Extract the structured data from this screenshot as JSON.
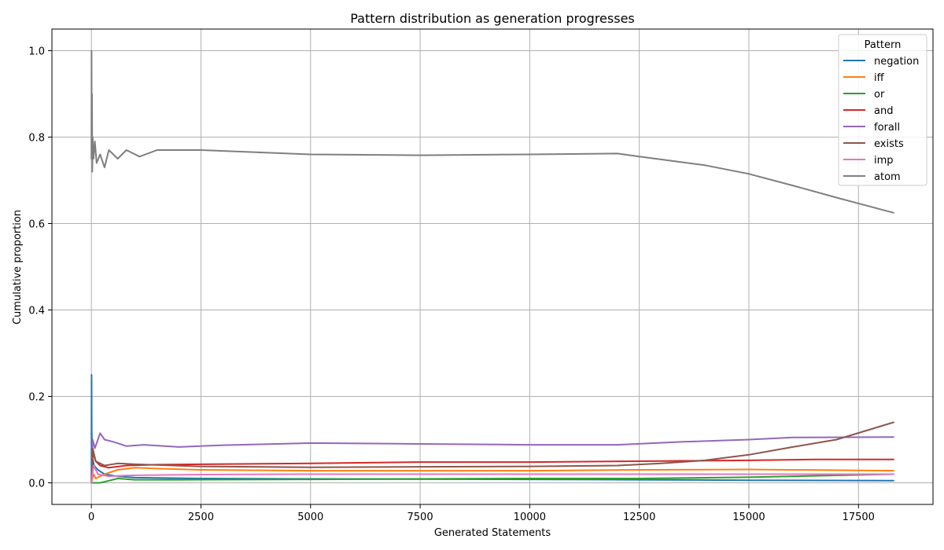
{
  "chart_data": {
    "type": "line",
    "title": "Pattern distribution as generation progresses",
    "xlabel": "Generated Statements",
    "ylabel": "Cumulative proportion",
    "xlim": [
      -900,
      19200
    ],
    "ylim": [
      -0.05,
      1.05
    ],
    "xticks": [
      0,
      2500,
      5000,
      7500,
      10000,
      12500,
      15000,
      17500
    ],
    "yticks": [
      0.0,
      0.2,
      0.4,
      0.6,
      0.8,
      1.0
    ],
    "grid": true,
    "legend": {
      "title": "Pattern",
      "position": "top-right"
    },
    "series": [
      {
        "name": "negation",
        "color": "#1f77b4",
        "points": [
          [
            1,
            0
          ],
          [
            4,
            0.25
          ],
          [
            8,
            0.12
          ],
          [
            20,
            0.06
          ],
          [
            60,
            0.04
          ],
          [
            150,
            0.03
          ],
          [
            300,
            0.02
          ],
          [
            600,
            0.015
          ],
          [
            1000,
            0.012
          ],
          [
            2500,
            0.01
          ],
          [
            5000,
            0.009
          ],
          [
            10000,
            0.008
          ],
          [
            12500,
            0.007
          ],
          [
            15000,
            0.006
          ],
          [
            18300,
            0.005
          ]
        ]
      },
      {
        "name": "iff",
        "color": "#ff7f0e",
        "points": [
          [
            1,
            0
          ],
          [
            50,
            0.02
          ],
          [
            100,
            0.01
          ],
          [
            300,
            0.02
          ],
          [
            600,
            0.03
          ],
          [
            1000,
            0.035
          ],
          [
            1500,
            0.033
          ],
          [
            2500,
            0.03
          ],
          [
            5000,
            0.028
          ],
          [
            10000,
            0.028
          ],
          [
            12500,
            0.03
          ],
          [
            15000,
            0.031
          ],
          [
            18300,
            0.028
          ]
        ]
      },
      {
        "name": "or",
        "color": "#2ca02c",
        "points": [
          [
            1,
            0
          ],
          [
            200,
            0.0
          ],
          [
            400,
            0.005
          ],
          [
            600,
            0.01
          ],
          [
            1000,
            0.007
          ],
          [
            2000,
            0.007
          ],
          [
            5000,
            0.008
          ],
          [
            10000,
            0.01
          ],
          [
            12500,
            0.01
          ],
          [
            15000,
            0.013
          ],
          [
            18300,
            0.02
          ]
        ]
      },
      {
        "name": "and",
        "color": "#d62728",
        "points": [
          [
            1,
            0
          ],
          [
            30,
            0.07
          ],
          [
            100,
            0.05
          ],
          [
            200,
            0.04
          ],
          [
            400,
            0.035
          ],
          [
            800,
            0.04
          ],
          [
            1500,
            0.042
          ],
          [
            2500,
            0.043
          ],
          [
            5000,
            0.045
          ],
          [
            7500,
            0.048
          ],
          [
            10000,
            0.048
          ],
          [
            12500,
            0.05
          ],
          [
            15000,
            0.052
          ],
          [
            16500,
            0.054
          ],
          [
            18300,
            0.054
          ]
        ]
      },
      {
        "name": "forall",
        "color": "#9467bd",
        "points": [
          [
            1,
            0
          ],
          [
            30,
            0.1
          ],
          [
            80,
            0.08
          ],
          [
            200,
            0.115
          ],
          [
            300,
            0.1
          ],
          [
            500,
            0.095
          ],
          [
            800,
            0.085
          ],
          [
            1200,
            0.088
          ],
          [
            2000,
            0.083
          ],
          [
            3000,
            0.087
          ],
          [
            5000,
            0.092
          ],
          [
            7500,
            0.09
          ],
          [
            10000,
            0.088
          ],
          [
            12000,
            0.088
          ],
          [
            13500,
            0.095
          ],
          [
            15000,
            0.1
          ],
          [
            16000,
            0.105
          ],
          [
            18300,
            0.106
          ]
        ]
      },
      {
        "name": "exists",
        "color": "#8c564b",
        "points": [
          [
            1,
            0
          ],
          [
            30,
            0.08
          ],
          [
            100,
            0.05
          ],
          [
            300,
            0.04
          ],
          [
            600,
            0.045
          ],
          [
            1000,
            0.043
          ],
          [
            2500,
            0.038
          ],
          [
            5000,
            0.036
          ],
          [
            7500,
            0.037
          ],
          [
            10000,
            0.038
          ],
          [
            12000,
            0.04
          ],
          [
            13000,
            0.045
          ],
          [
            14000,
            0.052
          ],
          [
            15000,
            0.065
          ],
          [
            16000,
            0.083
          ],
          [
            17000,
            0.1
          ],
          [
            18300,
            0.14
          ]
        ]
      },
      {
        "name": "imp",
        "color": "#e377c2",
        "points": [
          [
            1,
            0
          ],
          [
            50,
            0.04
          ],
          [
            150,
            0.02
          ],
          [
            400,
            0.015
          ],
          [
            800,
            0.017
          ],
          [
            1500,
            0.018
          ],
          [
            2500,
            0.019
          ],
          [
            5000,
            0.02
          ],
          [
            10000,
            0.02
          ],
          [
            15000,
            0.02
          ],
          [
            18300,
            0.02
          ]
        ]
      },
      {
        "name": "atom",
        "color": "#7f7f7f",
        "points": [
          [
            1,
            0.75
          ],
          [
            4,
            1.0
          ],
          [
            8,
            0.8
          ],
          [
            15,
            0.9
          ],
          [
            20,
            0.72
          ],
          [
            30,
            0.8
          ],
          [
            50,
            0.75
          ],
          [
            80,
            0.79
          ],
          [
            120,
            0.74
          ],
          [
            200,
            0.76
          ],
          [
            300,
            0.73
          ],
          [
            400,
            0.77
          ],
          [
            600,
            0.75
          ],
          [
            800,
            0.77
          ],
          [
            1100,
            0.755
          ],
          [
            1500,
            0.77
          ],
          [
            2500,
            0.77
          ],
          [
            5000,
            0.76
          ],
          [
            7500,
            0.758
          ],
          [
            10000,
            0.76
          ],
          [
            12000,
            0.762
          ],
          [
            12500,
            0.755
          ],
          [
            14000,
            0.735
          ],
          [
            15000,
            0.715
          ],
          [
            16000,
            0.688
          ],
          [
            17000,
            0.66
          ],
          [
            18300,
            0.625
          ]
        ]
      }
    ]
  }
}
